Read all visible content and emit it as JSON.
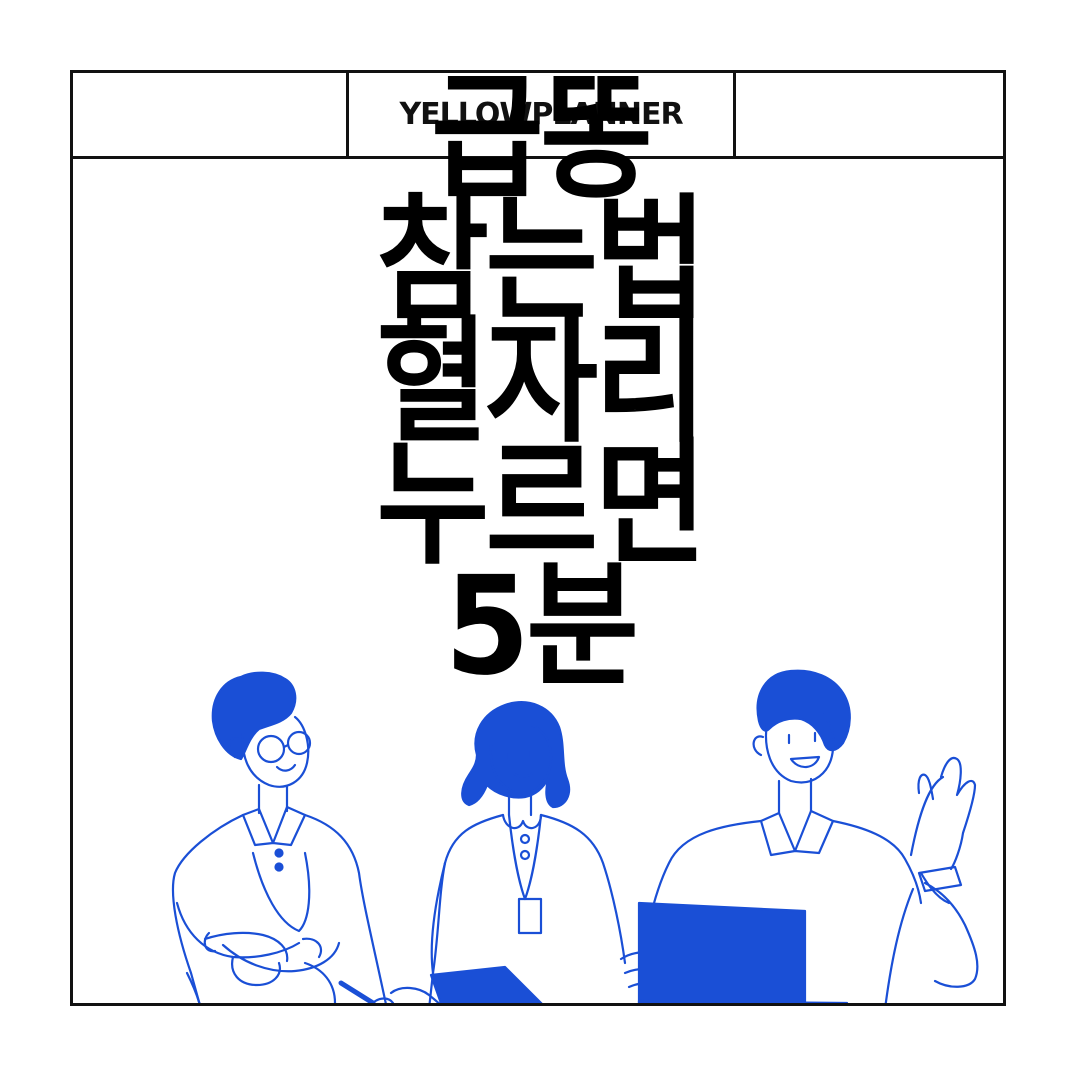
{
  "header": {
    "brand": "YELLOWPLANNER"
  },
  "title": {
    "lines": [
      "급똥",
      "참는법",
      "혈자리",
      "누르면",
      "5분"
    ]
  },
  "colors": {
    "accent": "#1a4fd6",
    "ink": "#111111",
    "background": "#ffffff"
  },
  "illustration": {
    "subject": "three office workers with laptop and clipboard"
  }
}
